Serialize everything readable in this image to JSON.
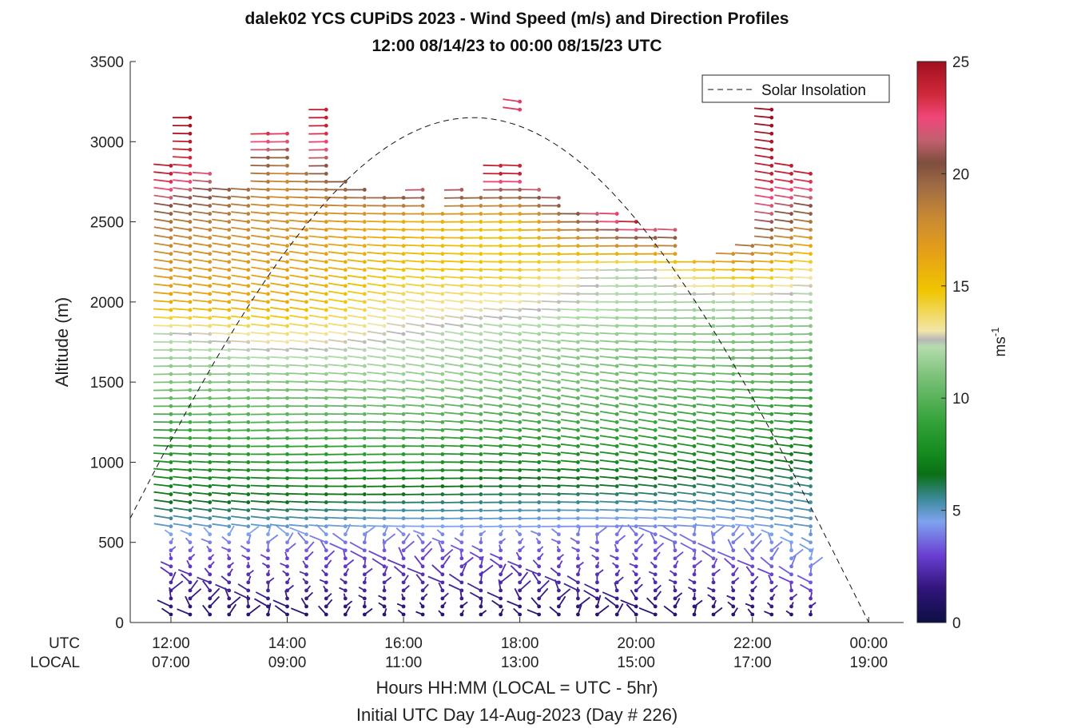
{
  "chart_data": {
    "type": "wind-barb-profile",
    "title_line1": "dalek02 YCS CUPiDS 2023 - Wind Speed (m/s) and Direction Profiles",
    "title_line2": "12:00 08/14/23 to 00:00 08/15/23  UTC",
    "ylabel": "Altitude (m)",
    "ylim": [
      0,
      3500
    ],
    "yticks": [
      0,
      500,
      1000,
      1500,
      2000,
      2500,
      3000,
      3500
    ],
    "xlim_hours": [
      11.3,
      24.6
    ],
    "x_row_labels": [
      "UTC",
      "LOCAL"
    ],
    "xticks": [
      {
        "hour": 12,
        "utc": "12:00",
        "local": "07:00"
      },
      {
        "hour": 14,
        "utc": "14:00",
        "local": "09:00"
      },
      {
        "hour": 16,
        "utc": "16:00",
        "local": "11:00"
      },
      {
        "hour": 18,
        "utc": "18:00",
        "local": "13:00"
      },
      {
        "hour": 20,
        "utc": "20:00",
        "local": "15:00"
      },
      {
        "hour": 22,
        "utc": "22:00",
        "local": "17:00"
      },
      {
        "hour": 24,
        "utc": "00:00",
        "local": "19:00"
      }
    ],
    "xlabel": "Hours HH:MM  (LOCAL = UTC - 5hr)",
    "footnote": "Initial UTC Day 14-Aug-2023 (Day # 226)",
    "legend": {
      "label": "Solar Insolation",
      "style": "dashed",
      "position": "top-right"
    },
    "solar_insolation_curve": {
      "peak_hour": 17.2,
      "peak_altitude": 3150,
      "zero_hour": 24.0
    },
    "colorbar": {
      "unit_label": "ms",
      "unit_exponent": "-1",
      "range": [
        0,
        25
      ],
      "ticks": [
        0,
        5,
        10,
        15,
        20,
        25
      ],
      "stops": [
        {
          "v": 0,
          "c": "#0d0f44"
        },
        {
          "v": 1.5,
          "c": "#30157a"
        },
        {
          "v": 3,
          "c": "#6a3fd3"
        },
        {
          "v": 4.5,
          "c": "#7fa3ef"
        },
        {
          "v": 5.5,
          "c": "#3c8a9a"
        },
        {
          "v": 6.6,
          "c": "#0b6f15"
        },
        {
          "v": 7.5,
          "c": "#138a1e"
        },
        {
          "v": 9,
          "c": "#35a33a"
        },
        {
          "v": 11,
          "c": "#7dc27a"
        },
        {
          "v": 12.3,
          "c": "#b5dcae"
        },
        {
          "v": 12.6,
          "c": "#b7b7b7"
        },
        {
          "v": 13,
          "c": "#f2e6a8"
        },
        {
          "v": 14.8,
          "c": "#f0c500"
        },
        {
          "v": 16.5,
          "c": "#e5a017"
        },
        {
          "v": 18,
          "c": "#c98a33"
        },
        {
          "v": 19.5,
          "c": "#9e6a44"
        },
        {
          "v": 20.5,
          "c": "#7e4e3e"
        },
        {
          "v": 21.5,
          "c": "#c2606f"
        },
        {
          "v": 22.5,
          "c": "#f0477a"
        },
        {
          "v": 23.5,
          "c": "#d02a3c"
        },
        {
          "v": 25,
          "c": "#a20f1f"
        }
      ]
    },
    "profile_times_hours": [
      12.0,
      12.33,
      12.67,
      13.0,
      13.33,
      13.67,
      14.0,
      14.33,
      14.67,
      15.0,
      15.33,
      15.67,
      16.0,
      16.33,
      16.67,
      17.0,
      17.33,
      17.67,
      18.0,
      18.33,
      18.67,
      19.0,
      19.33,
      19.67,
      20.0,
      20.33,
      20.67,
      21.0,
      21.33,
      21.67,
      22.0,
      22.33,
      22.67,
      23.0
    ],
    "profile_top_altitude_m": [
      2880,
      3160,
      2840,
      2740,
      2740,
      3080,
      3060,
      2840,
      3210,
      2790,
      2700,
      2650,
      2650,
      2720,
      2550,
      2740,
      2680,
      2880,
      3270,
      2700,
      2680,
      2590,
      2590,
      2550,
      2500,
      2450,
      2450,
      2290,
      2250,
      2330,
      2360,
      3210,
      2870,
      2830
    ],
    "speed_profile_ms": {
      "altitude_m": [
        0,
        200,
        400,
        600,
        800,
        1000,
        1200,
        1500,
        1800,
        2000,
        2200,
        2500,
        2800,
        3100
      ],
      "by_time": [
        {
          "hour": 12,
          "speed": [
            1,
            2,
            3,
            5,
            7,
            8,
            9,
            11,
            12.4,
            16,
            17,
            19,
            24,
            25
          ]
        },
        {
          "hour": 14,
          "speed": [
            1,
            2,
            3,
            5,
            7,
            8,
            9.5,
            11,
            13.5,
            16,
            16.5,
            17.5,
            18,
            24
          ]
        },
        {
          "hour": 16,
          "speed": [
            1,
            2,
            3,
            4.5,
            6.5,
            8,
            9.5,
            11.5,
            12.6,
            13.5,
            15,
            16,
            24,
            24
          ]
        },
        {
          "hour": 18,
          "speed": [
            1,
            2,
            3,
            4.5,
            6,
            7.5,
            9,
            11,
            12,
            13,
            14.5,
            15,
            24,
            23
          ]
        },
        {
          "hour": 20,
          "speed": [
            1,
            2,
            3,
            4,
            6,
            7.5,
            9,
            10.5,
            11.5,
            12,
            12,
            24,
            24,
            24
          ]
        },
        {
          "hour": 22,
          "speed": [
            1,
            2,
            3.5,
            4.5,
            5.5,
            7,
            8.5,
            10,
            11,
            12,
            16,
            22,
            24,
            25
          ]
        },
        {
          "hour": 23,
          "speed": [
            1,
            3,
            4.5,
            5,
            5.5,
            6.5,
            8,
            9.5,
            11,
            12,
            13.5,
            19,
            24,
            25
          ]
        }
      ]
    },
    "gaps": [
      {
        "hours": [
          17.7,
          18.4
        ],
        "altitude_m": [
          2900,
          3190
        ]
      },
      {
        "hours": [
          19.1,
          20.3
        ],
        "altitude_m": [
          2650,
          3300
        ]
      },
      {
        "hours": [
          21.6,
          21.8
        ],
        "altitude_m": [
          2380,
          2480
        ]
      }
    ]
  }
}
